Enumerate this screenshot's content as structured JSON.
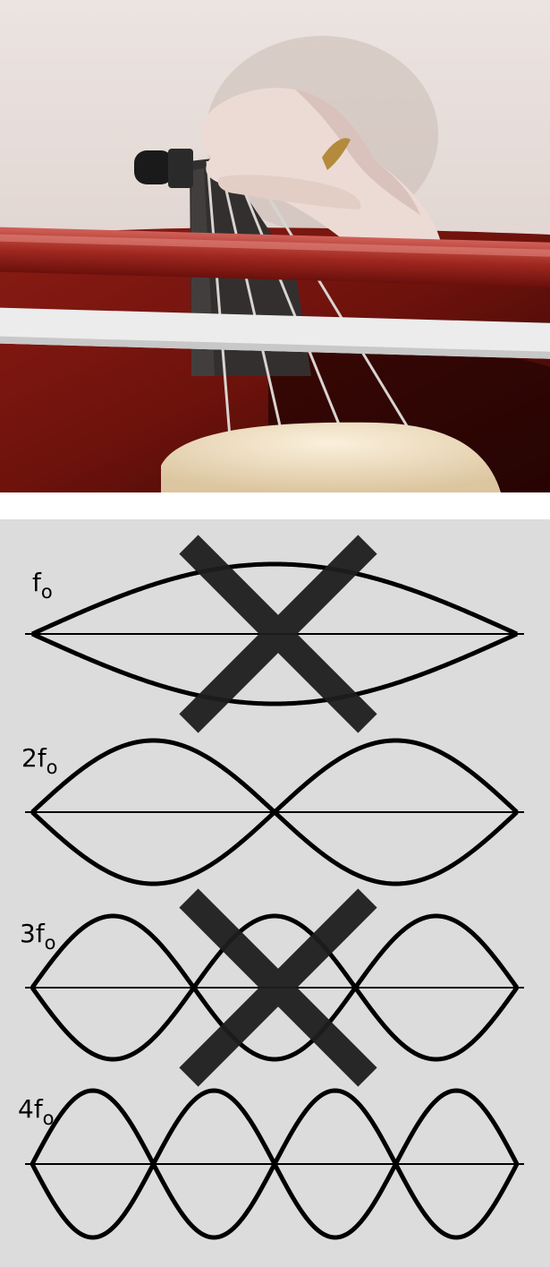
{
  "harmonics": [
    {
      "id": "h1",
      "label": "f",
      "subscript": "o",
      "n": 1,
      "crossed_out": true
    },
    {
      "id": "h2",
      "label": "2f",
      "subscript": "o",
      "n": 2,
      "crossed_out": false
    },
    {
      "id": "h3",
      "label": "3f",
      "subscript": "o",
      "n": 3,
      "crossed_out": true
    },
    {
      "id": "h4",
      "label": "4f",
      "subscript": "o",
      "n": 4,
      "crossed_out": false
    }
  ],
  "colors": {
    "panel_background": "#dcdcdc",
    "wave_stroke": "#000000",
    "cross_mark": "#1e1e1e",
    "wall": "#e6dcd8",
    "cello_wood": "#7a1410",
    "cello_wood_dark": "#3a0806",
    "bow_stick": "#a8302a",
    "bow_hair": "#ececec",
    "fingerboard": "#343030",
    "skin": "#ead9d2",
    "bridge": "#ecd8b8"
  }
}
